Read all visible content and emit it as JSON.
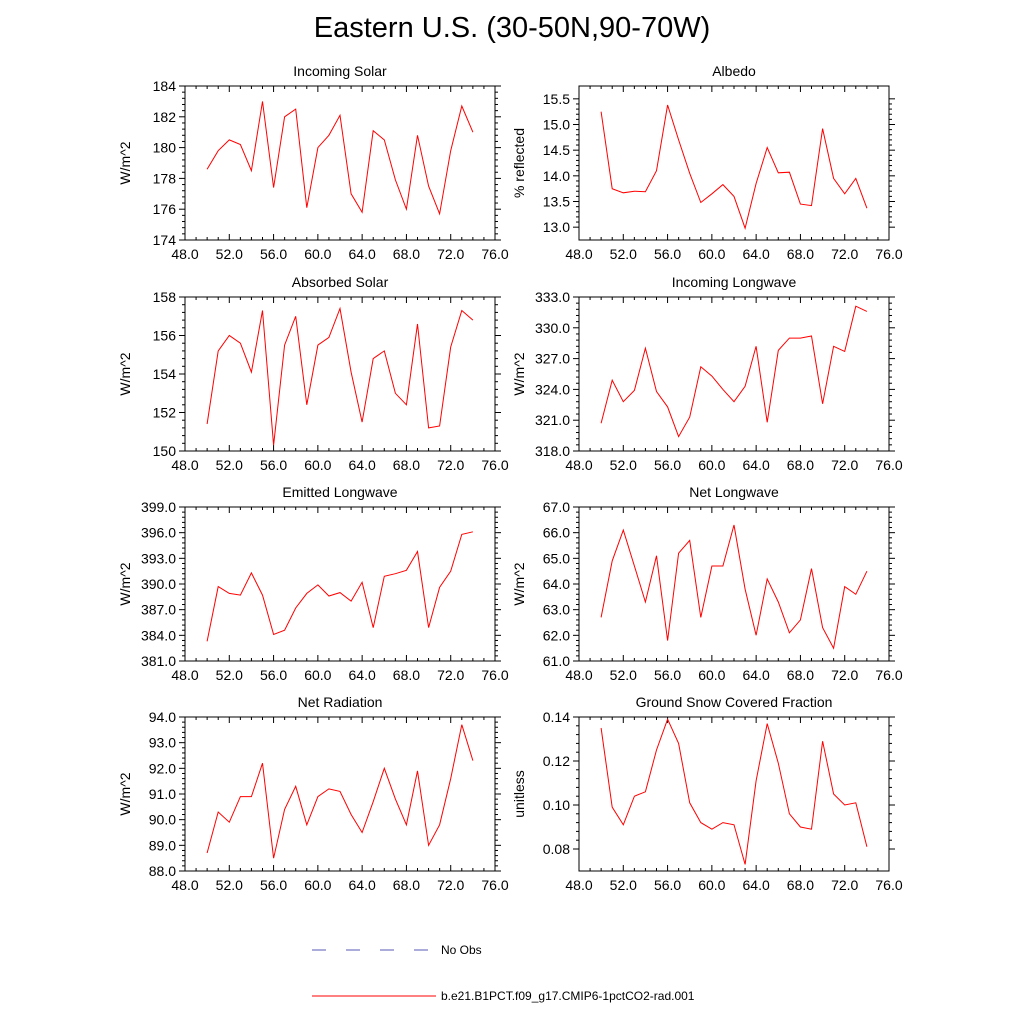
{
  "figure": {
    "title": "Eastern U.S. (30-50N,90-70W)",
    "legend": [
      {
        "label": "No Obs",
        "color": "#5a5ab4",
        "dash": true
      },
      {
        "label": "b.e21.B1PCT.f09_g17.CMIP6-1pctCO2-rad.001",
        "color": "#ff0000",
        "dash": false
      }
    ]
  },
  "chart_data": [
    {
      "type": "line",
      "title": "Incoming Solar",
      "ylabel": "W/m^2",
      "xlim": [
        48,
        76
      ],
      "ylim": [
        174,
        184
      ],
      "xticks": [
        48,
        52,
        56,
        60,
        64,
        68,
        72,
        76
      ],
      "yticks": [
        174,
        176,
        178,
        180,
        182,
        184
      ],
      "xtick_labels": [
        "48.0",
        "52.0",
        "56.0",
        "60.0",
        "64.0",
        "68.0",
        "72.0",
        "76.0"
      ],
      "ytick_labels": [
        "174",
        "176",
        "178",
        "180",
        "182",
        "184"
      ],
      "series": [
        {
          "color": "#ff0000",
          "x": [
            50,
            51,
            52,
            53,
            54,
            55,
            56,
            57,
            58,
            59,
            60,
            61,
            62,
            63,
            64,
            65,
            66,
            67,
            68,
            69,
            70,
            71,
            72,
            73,
            74
          ],
          "y": [
            178.6,
            179.8,
            180.5,
            180.2,
            178.5,
            183.0,
            177.4,
            182.0,
            182.5,
            176.1,
            180.0,
            180.8,
            182.1,
            177.0,
            175.8,
            181.1,
            180.5,
            177.9,
            176.0,
            180.8,
            177.5,
            175.7,
            179.8,
            182.7,
            181.0
          ]
        }
      ]
    },
    {
      "type": "line",
      "title": "Albedo",
      "ylabel": "% reflected",
      "xlim": [
        48,
        76
      ],
      "ylim": [
        12.75,
        15.75
      ],
      "xticks": [
        48,
        52,
        56,
        60,
        64,
        68,
        72,
        76
      ],
      "yticks": [
        13.0,
        13.5,
        14.0,
        14.5,
        15.0,
        15.5
      ],
      "xtick_labels": [
        "48.0",
        "52.0",
        "56.0",
        "60.0",
        "64.0",
        "68.0",
        "72.0",
        "76.0"
      ],
      "ytick_labels": [
        "13.0",
        "13.5",
        "14.0",
        "14.5",
        "15.0",
        "15.5"
      ],
      "series": [
        {
          "color": "#ff0000",
          "x": [
            50,
            51,
            52,
            53,
            54,
            55,
            56,
            57,
            58,
            59,
            60,
            61,
            62,
            63,
            64,
            65,
            66,
            67,
            68,
            69,
            70,
            71,
            72,
            73,
            74
          ],
          "y": [
            15.25,
            13.75,
            13.67,
            13.7,
            13.69,
            14.1,
            15.38,
            14.7,
            14.05,
            13.48,
            13.65,
            13.83,
            13.6,
            12.98,
            13.85,
            14.55,
            14.06,
            14.07,
            13.45,
            13.42,
            14.92,
            13.95,
            13.65,
            13.95,
            13.37
          ]
        }
      ]
    },
    {
      "type": "line",
      "title": "Absorbed Solar",
      "ylabel": "W/m^2",
      "xlim": [
        48,
        76
      ],
      "ylim": [
        150,
        158
      ],
      "xticks": [
        48,
        52,
        56,
        60,
        64,
        68,
        72,
        76
      ],
      "yticks": [
        150,
        152,
        154,
        156,
        158
      ],
      "xtick_labels": [
        "48.0",
        "52.0",
        "56.0",
        "60.0",
        "64.0",
        "68.0",
        "72.0",
        "76.0"
      ],
      "ytick_labels": [
        "150",
        "152",
        "154",
        "156",
        "158"
      ],
      "series": [
        {
          "color": "#ff0000",
          "x": [
            50,
            51,
            52,
            53,
            54,
            55,
            56,
            57,
            58,
            59,
            60,
            61,
            62,
            63,
            64,
            65,
            66,
            67,
            68,
            69,
            70,
            71,
            72,
            73,
            74
          ],
          "y": [
            151.4,
            155.2,
            156.0,
            155.6,
            154.1,
            157.3,
            150.3,
            155.5,
            157.0,
            152.4,
            155.5,
            155.9,
            157.4,
            154.1,
            151.5,
            154.8,
            155.2,
            153.0,
            152.4,
            156.6,
            151.2,
            151.3,
            155.4,
            157.3,
            156.8
          ]
        }
      ]
    },
    {
      "type": "line",
      "title": "Incoming Longwave",
      "ylabel": "W/m^2",
      "xlim": [
        48,
        76
      ],
      "ylim": [
        318,
        333
      ],
      "xticks": [
        48,
        52,
        56,
        60,
        64,
        68,
        72,
        76
      ],
      "yticks": [
        318,
        321,
        324,
        327,
        330,
        333
      ],
      "xtick_labels": [
        "48.0",
        "52.0",
        "56.0",
        "60.0",
        "64.0",
        "68.0",
        "72.0",
        "76.0"
      ],
      "ytick_labels": [
        "318.0",
        "321.0",
        "324.0",
        "327.0",
        "330.0",
        "333.0"
      ],
      "series": [
        {
          "color": "#ff0000",
          "x": [
            50,
            51,
            52,
            53,
            54,
            55,
            56,
            57,
            58,
            59,
            60,
            61,
            62,
            63,
            64,
            65,
            66,
            67,
            68,
            69,
            70,
            71,
            72,
            73,
            74
          ],
          "y": [
            320.7,
            324.9,
            322.8,
            323.9,
            328.0,
            323.8,
            322.3,
            319.4,
            321.3,
            326.2,
            325.3,
            324.0,
            322.8,
            324.3,
            328.2,
            320.8,
            327.8,
            329.0,
            329.0,
            329.2,
            322.6,
            328.2,
            327.7,
            332.1,
            331.6
          ]
        }
      ]
    },
    {
      "type": "line",
      "title": "Emitted Longwave",
      "ylabel": "W/m^2",
      "xlim": [
        48,
        76
      ],
      "ylim": [
        381,
        399
      ],
      "xticks": [
        48,
        52,
        56,
        60,
        64,
        68,
        72,
        76
      ],
      "yticks": [
        381,
        384,
        387,
        390,
        393,
        396,
        399
      ],
      "xtick_labels": [
        "48.0",
        "52.0",
        "56.0",
        "60.0",
        "64.0",
        "68.0",
        "72.0",
        "76.0"
      ],
      "ytick_labels": [
        "381.0",
        "384.0",
        "387.0",
        "390.0",
        "393.0",
        "396.0",
        "399.0"
      ],
      "series": [
        {
          "color": "#ff0000",
          "x": [
            50,
            51,
            52,
            53,
            54,
            55,
            56,
            57,
            58,
            59,
            60,
            61,
            62,
            63,
            64,
            65,
            66,
            67,
            68,
            69,
            70,
            71,
            72,
            73,
            74
          ],
          "y": [
            383.3,
            389.7,
            388.9,
            388.7,
            391.3,
            388.7,
            384.1,
            384.6,
            387.2,
            388.9,
            389.9,
            388.6,
            389.0,
            388.0,
            390.2,
            384.9,
            390.9,
            391.2,
            391.6,
            393.8,
            384.9,
            389.6,
            391.5,
            395.8,
            396.1
          ]
        }
      ]
    },
    {
      "type": "line",
      "title": "Net Longwave",
      "ylabel": "W/m^2",
      "xlim": [
        48,
        76
      ],
      "ylim": [
        61,
        67
      ],
      "xticks": [
        48,
        52,
        56,
        60,
        64,
        68,
        72,
        76
      ],
      "yticks": [
        61,
        62,
        63,
        64,
        65,
        66,
        67
      ],
      "xtick_labels": [
        "48.0",
        "52.0",
        "56.0",
        "60.0",
        "64.0",
        "68.0",
        "72.0",
        "76.0"
      ],
      "ytick_labels": [
        "61.0",
        "62.0",
        "63.0",
        "64.0",
        "65.0",
        "66.0",
        "67.0"
      ],
      "series": [
        {
          "color": "#ff0000",
          "x": [
            50,
            51,
            52,
            53,
            54,
            55,
            56,
            57,
            58,
            59,
            60,
            61,
            62,
            63,
            64,
            65,
            66,
            67,
            68,
            69,
            70,
            71,
            72,
            73,
            74
          ],
          "y": [
            62.7,
            64.9,
            66.1,
            64.7,
            63.3,
            65.1,
            61.8,
            65.2,
            65.7,
            62.7,
            64.7,
            64.7,
            66.3,
            63.8,
            62.0,
            64.2,
            63.3,
            62.1,
            62.6,
            64.6,
            62.3,
            61.5,
            63.9,
            63.6,
            64.5
          ]
        }
      ]
    },
    {
      "type": "line",
      "title": "Net Radiation",
      "ylabel": "W/m^2",
      "xlim": [
        48,
        76
      ],
      "ylim": [
        88,
        94
      ],
      "xticks": [
        48,
        52,
        56,
        60,
        64,
        68,
        72,
        76
      ],
      "yticks": [
        88,
        89,
        90,
        91,
        92,
        93,
        94
      ],
      "xtick_labels": [
        "48.0",
        "52.0",
        "56.0",
        "60.0",
        "64.0",
        "68.0",
        "72.0",
        "76.0"
      ],
      "ytick_labels": [
        "88.0",
        "89.0",
        "90.0",
        "91.0",
        "92.0",
        "93.0",
        "94.0"
      ],
      "series": [
        {
          "color": "#ff0000",
          "x": [
            50,
            51,
            52,
            53,
            54,
            55,
            56,
            57,
            58,
            59,
            60,
            61,
            62,
            63,
            64,
            65,
            66,
            67,
            68,
            69,
            70,
            71,
            72,
            73,
            74
          ],
          "y": [
            88.7,
            90.3,
            89.9,
            90.9,
            90.9,
            92.2,
            88.5,
            90.4,
            91.3,
            89.8,
            90.9,
            91.2,
            91.1,
            90.2,
            89.5,
            90.7,
            92.0,
            90.8,
            89.8,
            91.9,
            89.0,
            89.8,
            91.6,
            93.7,
            92.3
          ]
        }
      ]
    },
    {
      "type": "line",
      "title": "Ground Snow Covered Fraction",
      "ylabel": "unitless",
      "xlim": [
        48,
        76
      ],
      "ylim": [
        0.07,
        0.14
      ],
      "xticks": [
        48,
        52,
        56,
        60,
        64,
        68,
        72,
        76
      ],
      "yticks": [
        0.08,
        0.1,
        0.12,
        0.14
      ],
      "xtick_labels": [
        "48.0",
        "52.0",
        "56.0",
        "60.0",
        "64.0",
        "68.0",
        "72.0",
        "76.0"
      ],
      "ytick_labels": [
        "0.08",
        "0.10",
        "0.12",
        "0.14"
      ],
      "series": [
        {
          "color": "#ff0000",
          "x": [
            50,
            51,
            52,
            53,
            54,
            55,
            56,
            57,
            58,
            59,
            60,
            61,
            62,
            63,
            64,
            65,
            66,
            67,
            68,
            69,
            70,
            71,
            72,
            73,
            74
          ],
          "y": [
            0.135,
            0.099,
            0.091,
            0.104,
            0.106,
            0.125,
            0.139,
            0.128,
            0.101,
            0.092,
            0.089,
            0.092,
            0.091,
            0.073,
            0.111,
            0.137,
            0.119,
            0.096,
            0.09,
            0.089,
            0.129,
            0.105,
            0.1,
            0.101,
            0.081
          ]
        }
      ]
    }
  ]
}
